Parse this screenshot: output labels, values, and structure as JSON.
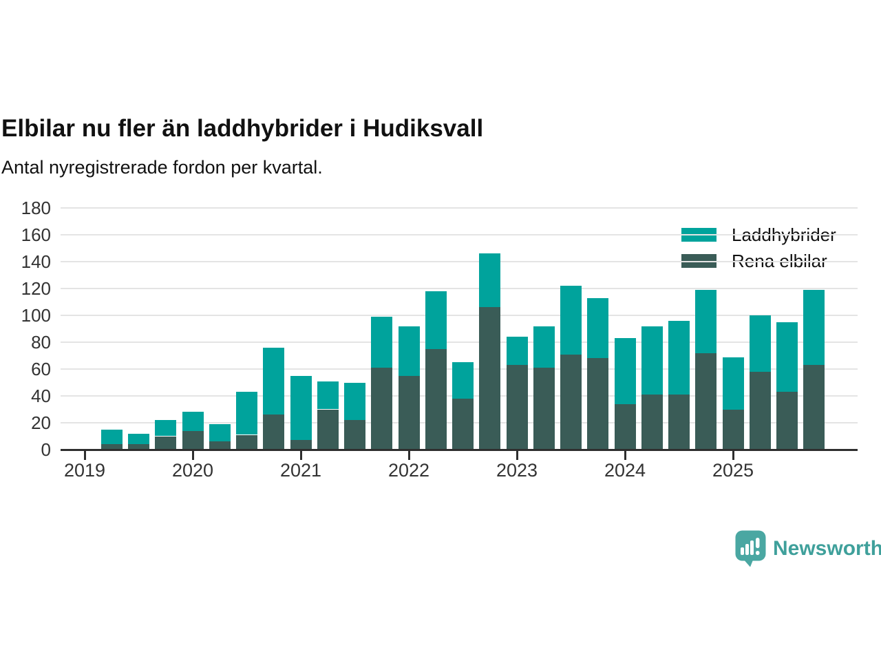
{
  "chart_data": {
    "type": "bar",
    "stacked": true,
    "title": "Elbilar nu fler än laddhybrider i Hudiksvall",
    "subtitle": "Antal nyregistrerade fordon per kvartal.",
    "categories": [
      "2019 Q2",
      "2019 Q3",
      "2019 Q4",
      "2020 Q1",
      "2020 Q2",
      "2020 Q3",
      "2020 Q4",
      "2021 Q1",
      "2021 Q2",
      "2021 Q3",
      "2021 Q4",
      "2022 Q1",
      "2022 Q2",
      "2022 Q3",
      "2022 Q4",
      "2023 Q1",
      "2023 Q2",
      "2023 Q3",
      "2023 Q4",
      "2024 Q1",
      "2024 Q2",
      "2024 Q3",
      "2024 Q4",
      "2025 Q1",
      "2025 Q2",
      "2025 Q3",
      "2025 Q4"
    ],
    "series": [
      {
        "name": "Laddhybrider",
        "color": "#00a39c",
        "values": [
          11,
          8,
          12,
          14,
          13,
          32,
          50,
          48,
          21,
          28,
          38,
          37,
          43,
          27,
          40,
          21,
          31,
          51,
          45,
          49,
          51,
          55,
          47,
          39,
          42,
          52,
          56
        ]
      },
      {
        "name": "Rena elbilar",
        "color": "#3a5c57",
        "values": [
          4,
          4,
          10,
          14,
          6,
          11,
          26,
          7,
          30,
          22,
          61,
          55,
          75,
          38,
          106,
          63,
          61,
          71,
          68,
          34,
          41,
          41,
          72,
          30,
          58,
          43,
          63
        ]
      }
    ],
    "stack_order_bottom_to_top": [
      "Rena elbilar",
      "Laddhybrider"
    ],
    "xlabel": "",
    "ylabel": "",
    "ylim": [
      0,
      180
    ],
    "yticks": [
      0,
      20,
      40,
      60,
      80,
      100,
      120,
      140,
      160,
      180
    ],
    "xticks": [
      "2019",
      "2020",
      "2021",
      "2022",
      "2023",
      "2024",
      "2025"
    ],
    "grid": true,
    "legend_position": "top-right"
  },
  "legend": {
    "items": [
      {
        "label": "Laddhybrider",
        "color": "#00a39c"
      },
      {
        "label": "Rena elbilar",
        "color": "#3a5c57"
      }
    ]
  },
  "footer": {
    "brand": "Newsworthy",
    "brand_color": "#3fa09b",
    "logo_color": "#4aa7a2"
  }
}
